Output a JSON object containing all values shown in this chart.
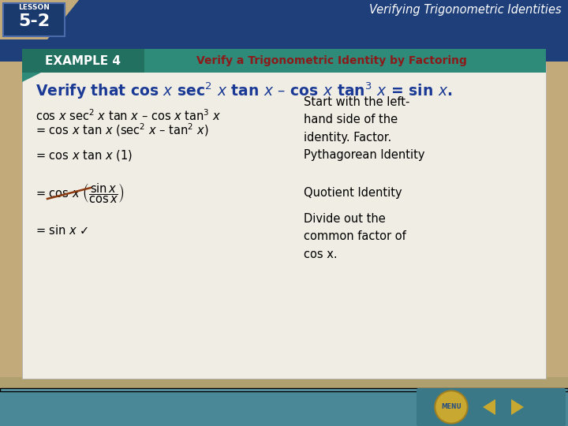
{
  "bg_color": "#c2aa7a",
  "white_panel_color": "#f0ede4",
  "header_teal_color": "#2e8b7a",
  "header_text_color": "#ffffff",
  "title_text_color": "#8b1a1a",
  "lesson_bg_color": "#1a3a6e",
  "top_right_title": "Verifying Trigonometric Identities",
  "example_label": "EXAMPLE 4",
  "example_title": "Verify a Trigonometric Identity by Factoring",
  "blue_banner_color": "#1e3f7a",
  "nav_bar_color": "#4a8898",
  "menu_gold": "#c8a830"
}
